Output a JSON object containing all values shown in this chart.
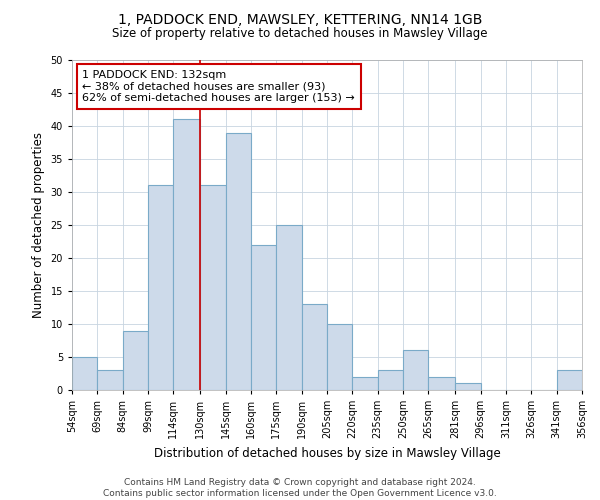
{
  "title": "1, PADDOCK END, MAWSLEY, KETTERING, NN14 1GB",
  "subtitle": "Size of property relative to detached houses in Mawsley Village",
  "xlabel": "Distribution of detached houses by size in Mawsley Village",
  "ylabel": "Number of detached properties",
  "bar_color": "#cddaea",
  "bar_edge_color": "#7aaac8",
  "bin_labels": [
    "54sqm",
    "69sqm",
    "84sqm",
    "99sqm",
    "114sqm",
    "130sqm",
    "145sqm",
    "160sqm",
    "175sqm",
    "190sqm",
    "205sqm",
    "220sqm",
    "235sqm",
    "250sqm",
    "265sqm",
    "281sqm",
    "296sqm",
    "311sqm",
    "326sqm",
    "341sqm",
    "356sqm"
  ],
  "bin_edges": [
    54,
    69,
    84,
    99,
    114,
    130,
    145,
    160,
    175,
    190,
    205,
    220,
    235,
    250,
    265,
    281,
    296,
    311,
    326,
    341,
    356
  ],
  "counts": [
    5,
    3,
    9,
    31,
    41,
    31,
    39,
    22,
    25,
    13,
    10,
    2,
    3,
    6,
    2,
    1,
    0,
    0,
    0,
    3
  ],
  "ylim": [
    0,
    50
  ],
  "yticks": [
    0,
    5,
    10,
    15,
    20,
    25,
    30,
    35,
    40,
    45,
    50
  ],
  "vline_x": 130,
  "vline_color": "#cc0000",
  "annotation_line1": "1 PADDOCK END: 132sqm",
  "annotation_line2": "← 38% of detached houses are smaller (93)",
  "annotation_line3": "62% of semi-detached houses are larger (153) →",
  "footer_text": "Contains HM Land Registry data © Crown copyright and database right 2024.\nContains public sector information licensed under the Open Government Licence v3.0.",
  "bg_color": "#ffffff",
  "grid_color": "#c8d4e0",
  "title_fontsize": 10,
  "subtitle_fontsize": 8.5,
  "axis_label_fontsize": 8.5,
  "tick_fontsize": 7,
  "annotation_fontsize": 8,
  "footer_fontsize": 6.5
}
